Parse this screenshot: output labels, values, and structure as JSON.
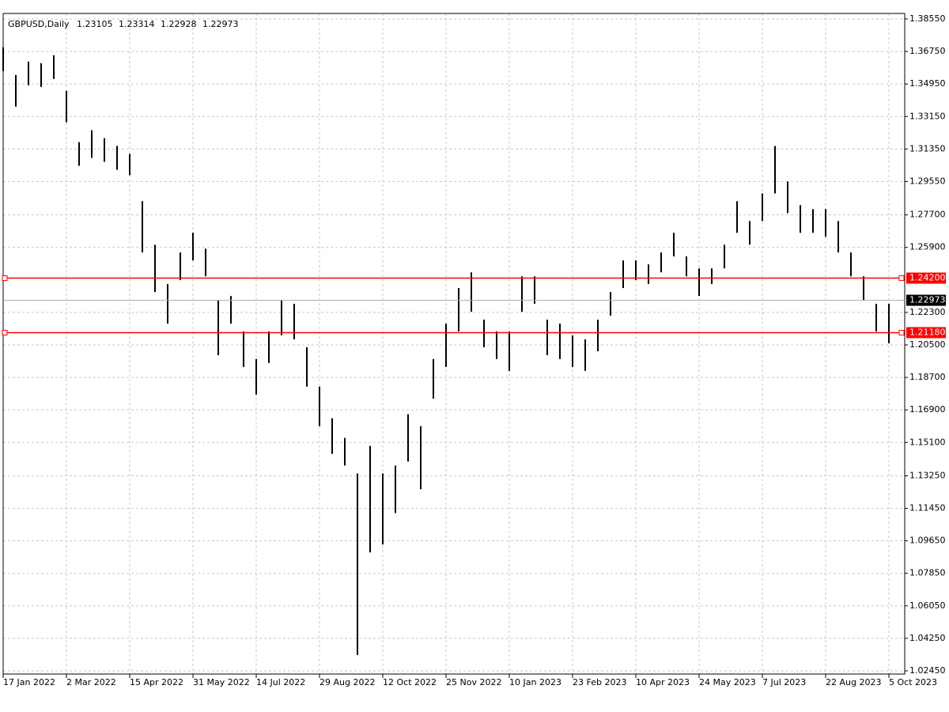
{
  "chart_data": {
    "type": "ohlc",
    "title": "GBPUSD,Daily",
    "last_bar": {
      "open": 1.23105,
      "high": 1.23314,
      "low": 1.22928,
      "close": 1.22973
    },
    "color": "#000000",
    "grid": true,
    "xlim": [
      0,
      71
    ],
    "xticks": [
      {
        "value": 0,
        "label": "17 Jan 2022"
      },
      {
        "value": 5,
        "label": "2 Mar 2022"
      },
      {
        "value": 10,
        "label": "15 Apr 2022"
      },
      {
        "value": 15,
        "label": "31 May 2022"
      },
      {
        "value": 20,
        "label": "14 Jul 2022"
      },
      {
        "value": 25,
        "label": "29 Aug 2022"
      },
      {
        "value": 30,
        "label": "12 Oct 2022"
      },
      {
        "value": 35,
        "label": "25 Nov 2022"
      },
      {
        "value": 40,
        "label": "10 Jan 2023"
      },
      {
        "value": 45,
        "label": "23 Feb 2023"
      },
      {
        "value": 50,
        "label": "10 Apr 2023"
      },
      {
        "value": 55,
        "label": "24 May 2023"
      },
      {
        "value": 60,
        "label": "7 Jul 2023"
      },
      {
        "value": 65,
        "label": "22 Aug 2023"
      },
      {
        "value": 70,
        "label": "5 Oct 2023"
      }
    ],
    "ylim": [
      1.0245,
      1.3855
    ],
    "yticks": [
      {
        "value": 1.3855,
        "label": "1.38550"
      },
      {
        "value": 1.3675,
        "label": "1.36750"
      },
      {
        "value": 1.3495,
        "label": "1.34950"
      },
      {
        "value": 1.3315,
        "label": "1.33150"
      },
      {
        "value": 1.3135,
        "label": "1.31350"
      },
      {
        "value": 1.2955,
        "label": "1.29550"
      },
      {
        "value": 1.277,
        "label": "1.27700"
      },
      {
        "value": 1.259,
        "label": "1.25900"
      },
      {
        "value": 1.223,
        "label": "1.22300"
      },
      {
        "value": 1.205,
        "label": "1.20500"
      },
      {
        "value": 1.187,
        "label": "1.18700"
      },
      {
        "value": 1.169,
        "label": "1.16900"
      },
      {
        "value": 1.151,
        "label": "1.15100"
      },
      {
        "value": 1.1325,
        "label": "1.13250"
      },
      {
        "value": 1.1145,
        "label": "1.11450"
      },
      {
        "value": 1.0965,
        "label": "1.09650"
      },
      {
        "value": 1.0785,
        "label": "1.07850"
      },
      {
        "value": 1.0605,
        "label": "1.06050"
      },
      {
        "value": 1.0425,
        "label": "1.04250"
      },
      {
        "value": 1.0245,
        "label": "1.02450"
      }
    ],
    "hlines": [
      {
        "value": 1.242,
        "label": "1.24200",
        "color": "#ff0000"
      },
      {
        "value": 1.2118,
        "label": "1.21180",
        "color": "#ff0000"
      }
    ],
    "high": [
      1.3698,
      1.3545,
      1.3619,
      1.361,
      1.3654,
      1.3457,
      1.3173,
      1.3239,
      1.3195,
      1.3152,
      1.3108,
      1.2846,
      1.2605,
      1.2387,
      1.2562,
      1.2671,
      1.2583,
      1.2299,
      1.2321,
      1.2125,
      1.1972,
      1.2125,
      1.2299,
      1.2278,
      1.2037,
      1.1819,
      1.1644,
      1.1535,
      1.1338,
      1.1491,
      1.1338,
      1.1382,
      1.1666,
      1.16,
      1.1972,
      1.2168,
      1.2365,
      1.2452,
      1.219,
      1.2125,
      1.2125,
      1.243,
      1.243,
      1.219,
      1.2168,
      1.2103,
      1.2081,
      1.219,
      1.2343,
      1.2518,
      1.2518,
      1.2496,
      1.2562,
      1.2671,
      1.254,
      1.2474,
      1.2474,
      1.2605,
      1.2846,
      1.2736,
      1.2889,
      1.3152,
      1.2955,
      1.2824,
      1.2802,
      1.2802,
      1.2736,
      1.2562,
      1.243,
      1.2278,
      1.2278
    ],
    "low": [
      1.3567,
      1.337,
      1.3488,
      1.3479,
      1.3523,
      1.3283,
      1.3042,
      1.3086,
      1.3064,
      1.302,
      1.299,
      1.2562,
      1.2343,
      1.2168,
      1.2409,
      1.2518,
      1.243,
      1.1993,
      1.2168,
      1.1928,
      1.1775,
      1.195,
      1.2103,
      1.2081,
      1.1819,
      1.16,
      1.1447,
      1.1382,
      1.0333,
      1.0901,
      1.0945,
      1.1119,
      1.1404,
      1.1251,
      1.1753,
      1.1928,
      1.2125,
      1.2234,
      1.2037,
      1.1972,
      1.1906,
      1.2234,
      1.2278,
      1.1993,
      1.1972,
      1.1928,
      1.1906,
      1.2015,
      1.2212,
      1.2365,
      1.2409,
      1.2387,
      1.2452,
      1.254,
      1.243,
      1.2321,
      1.2387,
      1.2474,
      1.2671,
      1.2605,
      1.2736,
      1.2889,
      1.278,
      1.2671,
      1.2671,
      1.2649,
      1.2562,
      1.243,
      1.2299,
      1.2125,
      1.2059
    ]
  }
}
